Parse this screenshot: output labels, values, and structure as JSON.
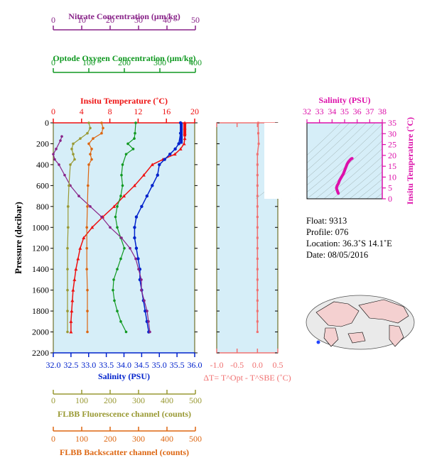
{
  "float_info": {
    "float": "Float:  9313",
    "profile": "Profile:  076",
    "location": "Location:  36.3˚S  14.1˚E",
    "date": "Date:  08/05/2016"
  },
  "colors": {
    "plot_bg": "#d6eef8",
    "temperature": "#ee1111",
    "salinity": "#0022cc",
    "oxygen": "#119922",
    "nitrate": "#882288",
    "fluorescence": "#999933",
    "backscatter": "#dd6611",
    "delta_t": "#f07070",
    "ts": "#dd11aa",
    "axis_dark": "#555500"
  },
  "chart_data": [
    {
      "type": "line",
      "id": "main_profile",
      "ylabel": "Pressure (decibar)",
      "y_ticks": [
        "0",
        "200",
        "400",
        "600",
        "800",
        "1000",
        "1200",
        "1400",
        "1600",
        "1800",
        "2000",
        "2200"
      ],
      "ylim": [
        2200,
        0
      ],
      "axes": [
        {
          "key": "nitrate",
          "label": "Nitrate Concentration (μm/kg)",
          "range": [
            0,
            50
          ],
          "ticks": [
            "0",
            "10",
            "20",
            "30",
            "40",
            "50"
          ]
        },
        {
          "key": "oxygen",
          "label": "Optode Oxygen Concentration (μm/kg)",
          "range": [
            0,
            400
          ],
          "ticks": [
            "0",
            "100",
            "200",
            "300",
            "400"
          ]
        },
        {
          "key": "temperature",
          "label": "Insitu Temperature (˚C)",
          "range": [
            0,
            20
          ],
          "ticks": [
            "0",
            "4",
            "8",
            "12",
            "16",
            "20"
          ]
        },
        {
          "key": "salinity",
          "label": "Salinity (PSU)",
          "range": [
            32,
            36
          ],
          "ticks": [
            "32.0",
            "32.5",
            "33.0",
            "33.5",
            "34.0",
            "34.5",
            "35.0",
            "35.5",
            "36.0"
          ]
        },
        {
          "key": "fluorescence",
          "label": "FLBB Fluorescence channel (counts)",
          "range": [
            0,
            500
          ],
          "ticks": [
            "0",
            "100",
            "200",
            "300",
            "400",
            "500"
          ]
        },
        {
          "key": "backscatter",
          "label": "FLBB Backscatter channel (counts)",
          "range": [
            0,
            500
          ],
          "ticks": [
            "0",
            "100",
            "200",
            "300",
            "400",
            "500"
          ]
        }
      ],
      "series": [
        {
          "key": "temperature",
          "axis": "temperature",
          "points": [
            [
              18.6,
              0
            ],
            [
              18.6,
              50
            ],
            [
              18.6,
              100
            ],
            [
              18.6,
              150
            ],
            [
              18.5,
              200
            ],
            [
              18.0,
              250
            ],
            [
              17.2,
              300
            ],
            [
              15.5,
              350
            ],
            [
              14.0,
              400
            ],
            [
              12.8,
              500
            ],
            [
              11.5,
              600
            ],
            [
              10.0,
              700
            ],
            [
              8.6,
              800
            ],
            [
              7.0,
              900
            ],
            [
              5.5,
              1000
            ],
            [
              4.3,
              1100
            ],
            [
              3.8,
              1200
            ],
            [
              3.5,
              1300
            ],
            [
              3.2,
              1400
            ],
            [
              3.0,
              1500
            ],
            [
              2.8,
              1600
            ],
            [
              2.7,
              1700
            ],
            [
              2.6,
              1800
            ],
            [
              2.5,
              1900
            ],
            [
              2.5,
              2000
            ]
          ]
        },
        {
          "key": "salinity",
          "axis": "salinity",
          "points": [
            [
              35.6,
              0
            ],
            [
              35.6,
              100
            ],
            [
              35.55,
              200
            ],
            [
              35.45,
              250
            ],
            [
              35.3,
              300
            ],
            [
              35.15,
              350
            ],
            [
              35.0,
              400
            ],
            [
              34.95,
              500
            ],
            [
              34.8,
              600
            ],
            [
              34.65,
              700
            ],
            [
              34.5,
              800
            ],
            [
              34.35,
              900
            ],
            [
              34.3,
              1000
            ],
            [
              34.3,
              1100
            ],
            [
              34.35,
              1200
            ],
            [
              34.4,
              1300
            ],
            [
              34.45,
              1400
            ],
            [
              34.45,
              1500
            ],
            [
              34.5,
              1600
            ],
            [
              34.55,
              1700
            ],
            [
              34.6,
              1800
            ],
            [
              34.65,
              1900
            ],
            [
              34.7,
              2000
            ]
          ]
        },
        {
          "key": "oxygen",
          "axis": "oxygen",
          "points": [
            [
              232,
              0
            ],
            [
              230,
              100
            ],
            [
              228,
              150
            ],
            [
              210,
              200
            ],
            [
              225,
              250
            ],
            [
              205,
              300
            ],
            [
              195,
              400
            ],
            [
              192,
              500
            ],
            [
              195,
              600
            ],
            [
              190,
              700
            ],
            [
              180,
              800
            ],
            [
              175,
              900
            ],
            [
              180,
              1000
            ],
            [
              190,
              1100
            ],
            [
              200,
              1200
            ],
            [
              190,
              1300
            ],
            [
              180,
              1400
            ],
            [
              170,
              1500
            ],
            [
              168,
              1600
            ],
            [
              172,
              1700
            ],
            [
              180,
              1800
            ],
            [
              190,
              1900
            ],
            [
              205,
              2000
            ]
          ]
        },
        {
          "key": "nitrate",
          "axis": "nitrate",
          "points": [
            [
              3,
              130
            ],
            [
              2.5,
              170
            ],
            [
              1,
              250
            ],
            [
              0,
              300
            ],
            [
              0.5,
              350
            ],
            [
              2,
              400
            ],
            [
              4,
              500
            ],
            [
              6,
              600
            ],
            [
              9,
              700
            ],
            [
              13,
              800
            ],
            [
              17,
              900
            ],
            [
              20,
              1000
            ],
            [
              24,
              1100
            ],
            [
              27,
              1200
            ],
            [
              29,
              1300
            ],
            [
              30,
              1400
            ],
            [
              31,
              1500
            ],
            [
              31,
              1600
            ],
            [
              32,
              1700
            ],
            [
              33,
              1800
            ],
            [
              33.5,
              1900
            ],
            [
              34,
              2000
            ]
          ]
        },
        {
          "key": "fluorescence",
          "axis": "fluorescence",
          "points": [
            [
              125,
              0
            ],
            [
              130,
              50
            ],
            [
              120,
              100
            ],
            [
              95,
              150
            ],
            [
              70,
              200
            ],
            [
              65,
              250
            ],
            [
              70,
              300
            ],
            [
              75,
              350
            ],
            [
              60,
              400
            ],
            [
              55,
              600
            ],
            [
              52,
              800
            ],
            [
              52,
              1000
            ],
            [
              50,
              1200
            ],
            [
              50,
              1400
            ],
            [
              50,
              1600
            ],
            [
              50,
              1800
            ],
            [
              50,
              2000
            ]
          ]
        },
        {
          "key": "backscatter",
          "axis": "backscatter",
          "points": [
            [
              170,
              0
            ],
            [
              175,
              50
            ],
            [
              170,
              100
            ],
            [
              140,
              150
            ],
            [
              125,
              200
            ],
            [
              135,
              250
            ],
            [
              130,
              300
            ],
            [
              135,
              350
            ],
            [
              125,
              400
            ],
            [
              122,
              600
            ],
            [
              120,
              800
            ],
            [
              118,
              1000
            ],
            [
              118,
              1200
            ],
            [
              118,
              1400
            ],
            [
              120,
              1600
            ],
            [
              120,
              1800
            ],
            [
              120,
              2000
            ]
          ]
        }
      ]
    },
    {
      "type": "line",
      "id": "delta_t",
      "xlabel": "ΔT= T^Opt - T^SBE (˚C)",
      "xlim": [
        -1.0,
        0.5
      ],
      "x_ticks": [
        "-1.0",
        "-0.5",
        "0.0",
        "0.5"
      ],
      "ylim": [
        2200,
        0
      ],
      "series": [
        {
          "key": "delta_t",
          "points": [
            [
              0.02,
              0
            ],
            [
              0.02,
              100
            ],
            [
              0.03,
              200
            ],
            [
              0.0,
              300
            ],
            [
              0.0,
              400
            ],
            [
              0.0,
              500
            ],
            [
              0.0,
              600
            ],
            [
              0.0,
              700
            ],
            [
              0.0,
              800
            ],
            [
              0.0,
              900
            ],
            [
              0.0,
              1000
            ],
            [
              0.0,
              1100
            ],
            [
              0.0,
              1200
            ],
            [
              0.0,
              1300
            ],
            [
              0.0,
              1400
            ],
            [
              0.0,
              1500
            ],
            [
              0.0,
              1600
            ],
            [
              0.0,
              1700
            ],
            [
              0.0,
              1800
            ],
            [
              0.0,
              1900
            ],
            [
              0.0,
              2000
            ]
          ]
        }
      ]
    },
    {
      "type": "scatter",
      "id": "ts_diagram",
      "title": "Salinity (PSU)",
      "ylabel": "Insitu Temperature (˚C)",
      "xlim": [
        32,
        38
      ],
      "ylim": [
        0,
        35
      ],
      "x_ticks": [
        "32",
        "33",
        "34",
        "35",
        "36",
        "37",
        "38"
      ],
      "y_ticks": [
        "0",
        "5",
        "10",
        "15",
        "20",
        "25",
        "30",
        "35"
      ],
      "points": [
        [
          34.5,
          2.5
        ],
        [
          34.45,
          3.2
        ],
        [
          34.4,
          4
        ],
        [
          34.35,
          5
        ],
        [
          34.4,
          6
        ],
        [
          34.5,
          7
        ],
        [
          34.6,
          8.5
        ],
        [
          34.75,
          10
        ],
        [
          34.9,
          11.5
        ],
        [
          35.0,
          13
        ],
        [
          35.1,
          14.5
        ],
        [
          35.2,
          16
        ],
        [
          35.3,
          17
        ],
        [
          35.45,
          18
        ],
        [
          35.55,
          18.5
        ],
        [
          35.6,
          18.6
        ]
      ]
    }
  ]
}
